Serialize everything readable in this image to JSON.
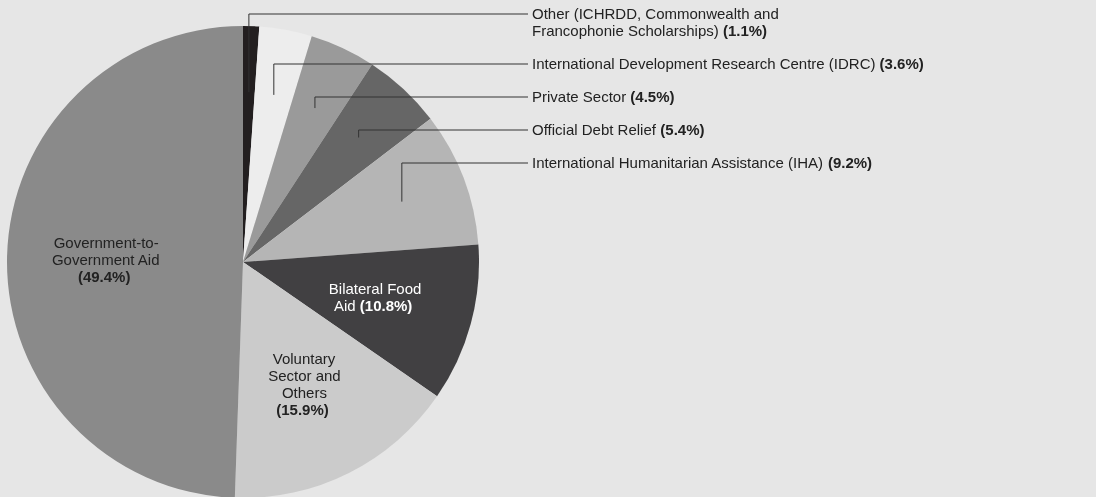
{
  "chart_data": {
    "type": "pie",
    "categories": [
      "Other (ICHRDD, Commonwealth and Francophonie Scholarships)",
      "International Development Research Centre (IDRC)",
      "Private Sector",
      "Official Debt Relief",
      "International Humanitarian Assistance (IHA)",
      "Bilateral Food Aid",
      "Voluntary Sector and Others",
      "Government-to-Government Aid"
    ],
    "values": [
      1.1,
      3.6,
      4.5,
      5.4,
      9.2,
      10.8,
      15.9,
      49.4
    ],
    "value_labels": [
      "(1.1%)",
      "(3.6%)",
      "(4.5%)",
      "(5.4%)",
      "(9.2%)",
      "(10.8%)",
      "(15.9%)",
      "(49.4%)"
    ],
    "colors": [
      "#231f20",
      "#ededed",
      "#9a9a9a",
      "#666666",
      "#b5b5b5",
      "#414042",
      "#cbcbcb",
      "#8a8a8a"
    ]
  }
}
